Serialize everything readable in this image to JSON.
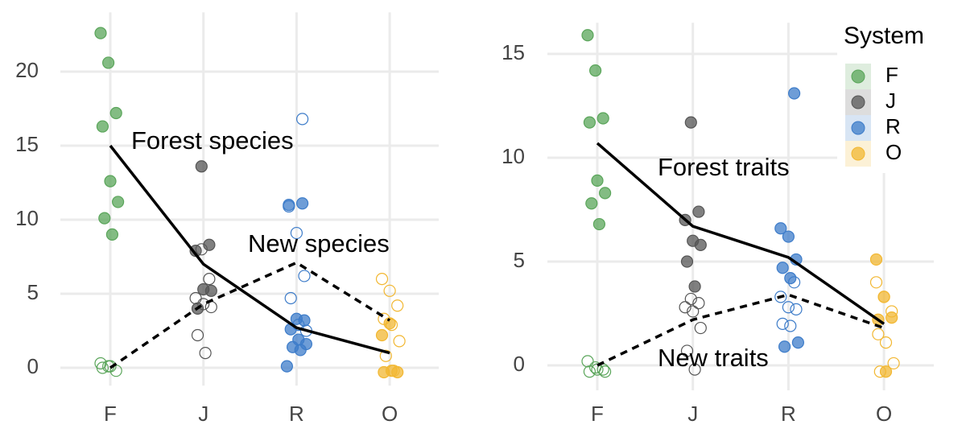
{
  "chart_data": [
    {
      "type": "strip",
      "categories": [
        "F",
        "J",
        "R",
        "O"
      ],
      "colors": [
        "#5aa55a",
        "#555555",
        "#3d7cc9",
        "#f2b731"
      ],
      "ylim": [
        -1.2,
        24
      ],
      "yticks": [
        0,
        5,
        10,
        15,
        20
      ],
      "grid": true,
      "filled_points": [
        [
          22.6,
          20.6,
          17.2,
          16.3,
          12.6,
          11.2,
          10.1,
          9.0
        ],
        [
          13.6,
          8.3,
          7.9,
          5.3,
          5.2,
          4.0
        ],
        [
          11.1,
          11.0,
          3.3,
          3.2,
          2.6,
          1.9,
          1.6,
          1.4,
          1.2,
          0.1
        ],
        [
          2.2,
          3.0,
          -0.3,
          -0.3,
          -0.2
        ]
      ],
      "open_points": [
        [
          0.3,
          0.1,
          -0.2,
          0.0,
          0.1
        ],
        [
          8.0,
          6.0,
          4.7,
          4.3,
          4.1,
          2.2,
          1.0
        ],
        [
          16.8,
          10.9,
          9.1,
          6.2,
          4.7,
          2.9,
          2.5
        ],
        [
          6.0,
          5.2,
          4.2,
          3.3,
          2.9,
          1.8,
          0.8,
          -0.2
        ]
      ],
      "lines": [
        {
          "name": "Forest species",
          "dashed": false,
          "values": [
            15,
            7,
            2.7,
            1.0
          ]
        },
        {
          "name": "New species",
          "dashed": true,
          "values": [
            0,
            4.3,
            7.1,
            3.2
          ]
        }
      ]
    },
    {
      "type": "strip",
      "categories": [
        "F",
        "J",
        "R",
        "O"
      ],
      "colors": [
        "#5aa55a",
        "#555555",
        "#3d7cc9",
        "#f2b731"
      ],
      "ylim": [
        -1.2,
        16.5
      ],
      "yticks": [
        0,
        5,
        10,
        15
      ],
      "grid": true,
      "legend_title": "System",
      "filled_points": [
        [
          15.9,
          14.2,
          11.9,
          11.7,
          8.9,
          8.3,
          7.8,
          6.8
        ],
        [
          11.7,
          7.4,
          7.0,
          6.0,
          5.8,
          5.0,
          3.8
        ],
        [
          13.1,
          6.6,
          6.2,
          5.1,
          4.7,
          4.2,
          1.1,
          0.9
        ],
        [
          5.1,
          3.3,
          2.3,
          2.2,
          -0.3
        ]
      ],
      "open_points": [
        [
          0.2,
          -0.1,
          -0.2,
          -0.3,
          -0.2,
          -0.3
        ],
        [
          3.2,
          3.0,
          2.8,
          2.6,
          1.8,
          0.7,
          -0.2
        ],
        [
          4.0,
          3.3,
          2.8,
          2.7,
          2.0,
          1.9
        ],
        [
          4.0,
          3.3,
          2.6,
          1.5,
          1.1,
          0.1,
          -0.3
        ]
      ],
      "lines": [
        {
          "name": "Forest traits",
          "dashed": false,
          "values": [
            10.7,
            6.7,
            5.2,
            2.0
          ]
        },
        {
          "name": "New traits",
          "dashed": true,
          "values": [
            0,
            2.2,
            3.4,
            1.8
          ]
        }
      ]
    }
  ]
}
